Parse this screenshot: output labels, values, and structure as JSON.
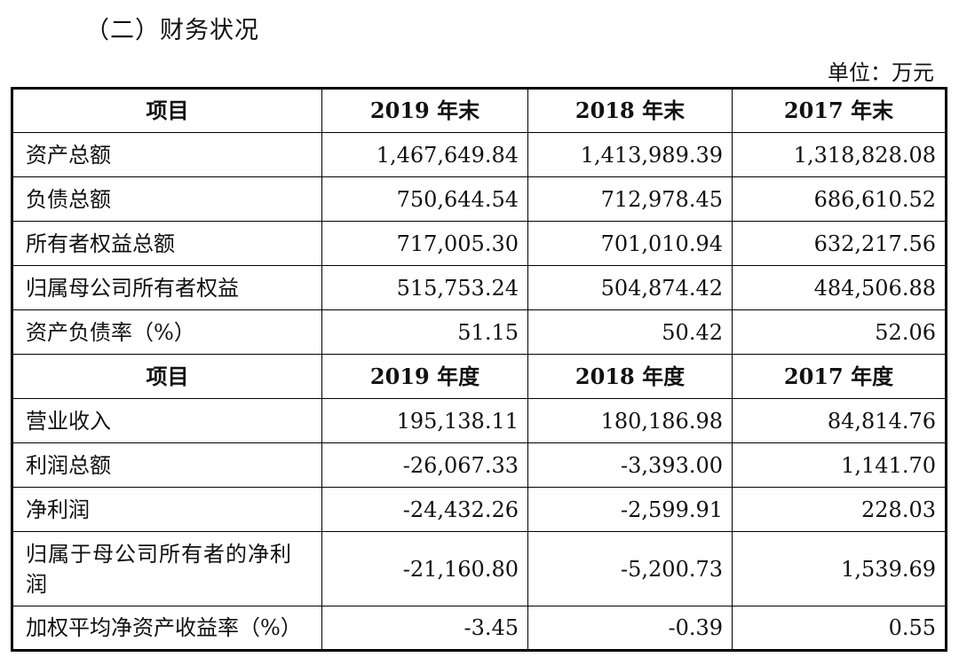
{
  "section_title": "（二）财务状况",
  "unit": "单位：万元",
  "balance_header": [
    "项目",
    "2019 年末",
    "2018 年末",
    "2017 年末"
  ],
  "balance_rows": [
    {
      "label": "资产总额",
      "values": [
        "1,467,649.84",
        "1,413,989.39",
        "1,318,828.08"
      ]
    },
    {
      "label": "负债总额",
      "values": [
        "750,644.54",
        "712,978.45",
        "686,610.52"
      ]
    },
    {
      "label": "所有者权益总额",
      "values": [
        "717,005.30",
        "701,010.94",
        "632,217.56"
      ]
    },
    {
      "label": "归属母公司所有者权益",
      "values": [
        "515,753.24",
        "504,874.42",
        "484,506.88"
      ]
    },
    {
      "label": "资产负债率（%）",
      "values": [
        "51.15",
        "50.42",
        "52.06"
      ]
    }
  ],
  "income_header": [
    "项目",
    "2019 年度",
    "2018 年度",
    "2017 年度"
  ],
  "income_rows": [
    {
      "label": "营业收入",
      "values": [
        "195,138.11",
        "180,186.98",
        "84,814.76"
      ]
    },
    {
      "label": "利润总额",
      "values": [
        "-26,067.33",
        "-3,393.00",
        "1,141.70"
      ]
    },
    {
      "label": "净利润",
      "values": [
        "-24,432.26",
        "-2,599.91",
        "228.03"
      ]
    },
    {
      "label": "归属于母公司所有者的净利润",
      "values": [
        "-21,160.80",
        "-5,200.73",
        "1,539.69"
      ]
    },
    {
      "label": "加权平均净资产收益率（%）",
      "values": [
        "-3.45",
        "-0.39",
        "0.55"
      ]
    }
  ]
}
